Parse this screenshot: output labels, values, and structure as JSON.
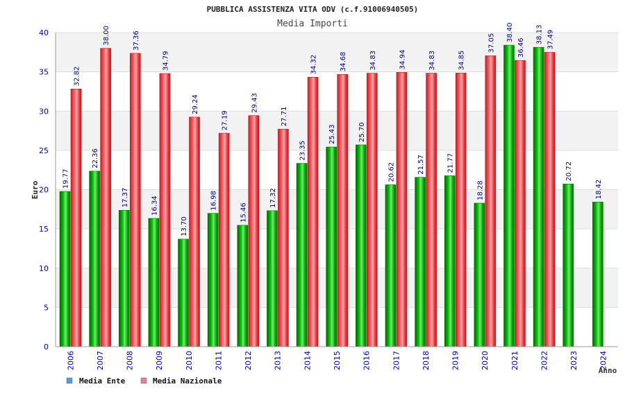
{
  "chart_data": {
    "type": "bar",
    "title": "PUBBLICA ASSISTENZA VITA ODV (c.f.91006940505)",
    "subtitle": "Media Importi",
    "xlabel": "Anno",
    "ylabel": "Euro",
    "ylim": [
      0,
      40
    ],
    "yticks": [
      0,
      5,
      10,
      15,
      20,
      25,
      30,
      35,
      40
    ],
    "categories": [
      "2006",
      "2007",
      "2008",
      "2009",
      "2010",
      "2011",
      "2012",
      "2013",
      "2014",
      "2015",
      "2016",
      "2017",
      "2018",
      "2019",
      "2020",
      "2021",
      "2022",
      "2023",
      "2024"
    ],
    "series": [
      {
        "name": "Media Ente",
        "color": "#00aa00",
        "legend_color": "#5b9bd5",
        "values": [
          19.77,
          22.36,
          17.37,
          16.34,
          13.7,
          16.98,
          15.46,
          17.32,
          23.35,
          25.43,
          25.7,
          20.62,
          21.57,
          21.77,
          18.28,
          38.4,
          38.13,
          20.72,
          18.42
        ],
        "labels": [
          "19.77",
          "22.36",
          "17.37",
          "16.34",
          "13.70",
          "16.98",
          "15.46",
          "17.32",
          "23.35",
          "25.43",
          "25.70",
          "20.62",
          "21.57",
          "21.77",
          "18.28",
          "38.40",
          "38.13",
          "20.72",
          "18.42"
        ]
      },
      {
        "name": "Media Nazionale",
        "color": "#e8262b",
        "legend_color": "#e0809f",
        "values": [
          32.82,
          38.0,
          37.36,
          34.79,
          29.24,
          27.19,
          29.43,
          27.71,
          34.32,
          34.68,
          34.83,
          34.94,
          34.83,
          34.85,
          37.05,
          36.46,
          37.49,
          null,
          null
        ],
        "labels": [
          "32.82",
          "38.00",
          "37.36",
          "34.79",
          "29.24",
          "27.19",
          "29.43",
          "27.71",
          "34.32",
          "34.68",
          "34.83",
          "34.94",
          "34.83",
          "34.85",
          "37.05",
          "36.46",
          "37.49",
          null,
          null
        ]
      }
    ],
    "legend_position": "bottom-left",
    "grid": true
  }
}
